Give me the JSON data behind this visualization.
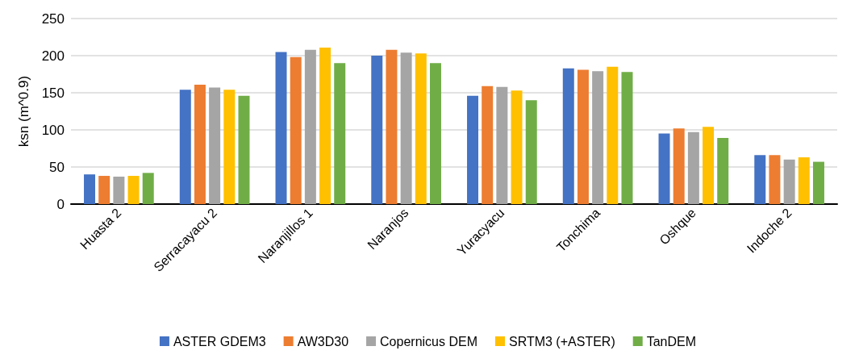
{
  "chart_data": {
    "type": "bar",
    "ylabel": "ksn (m^0.9)",
    "categories": [
      "Huasta 2",
      "Serracayacu 2",
      "Naranjillos 1",
      "Naranjos",
      "Yuracyacu",
      "Tonchima",
      "Oshque",
      "Indoche 2"
    ],
    "series": [
      {
        "name": "ASTER GDEM3",
        "color": "#4472c4",
        "values": [
          40,
          154,
          205,
          200,
          146,
          183,
          95,
          66
        ]
      },
      {
        "name": "AW3D30",
        "color": "#ed7d31",
        "values": [
          38,
          161,
          198,
          208,
          159,
          181,
          102,
          66
        ]
      },
      {
        "name": "Copernicus DEM",
        "color": "#a5a5a5",
        "values": [
          37,
          157,
          208,
          204,
          158,
          179,
          97,
          60
        ]
      },
      {
        "name": "SRTM3 (+ASTER)",
        "color": "#ffc000",
        "values": [
          38,
          154,
          211,
          203,
          153,
          185,
          104,
          63
        ]
      },
      {
        "name": "TanDEM",
        "color": "#70ad47",
        "values": [
          42,
          146,
          190,
          190,
          140,
          178,
          89,
          57
        ]
      }
    ],
    "ylim": [
      0,
      250
    ],
    "yticks": [
      0,
      50,
      100,
      150,
      200,
      250
    ],
    "grid": "y",
    "legend": "bottom"
  }
}
